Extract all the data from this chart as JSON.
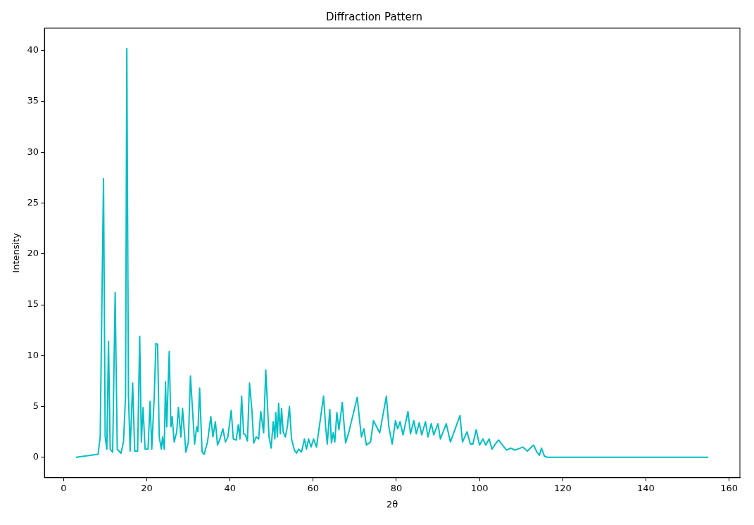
{
  "chart_data": {
    "type": "line",
    "title": "Diffraction Pattern",
    "xlabel": "2θ",
    "ylabel": "Intensity",
    "x": [
      3,
      8.3,
      8.8,
      9.6,
      10.0,
      10.4,
      10.8,
      11.2,
      11.8,
      12.4,
      12.9,
      13.8,
      14.4,
      14.9,
      15.2,
      15.6,
      16.0,
      16.6,
      17.1,
      17.8,
      18.3,
      18.7,
      19.1,
      19.6,
      20.3,
      20.8,
      21.2,
      21.8,
      22.2,
      22.6,
      23.0,
      23.5,
      23.8,
      24.2,
      24.5,
      24.8,
      25.4,
      25.8,
      26.1,
      26.6,
      27.2,
      27.6,
      28.2,
      28.6,
      29.4,
      30.0,
      30.5,
      31.1,
      31.5,
      32.0,
      32.3,
      32.7,
      33.3,
      33.8,
      34.6,
      35.4,
      35.9,
      36.5,
      37.0,
      37.6,
      38.3,
      38.9,
      39.5,
      40.3,
      40.8,
      41.5,
      42.0,
      42.4,
      42.8,
      43.3,
      43.7,
      44.2,
      44.7,
      45.3,
      45.7,
      46.3,
      46.9,
      47.4,
      48.1,
      48.6,
      49.4,
      49.9,
      50.4,
      50.8,
      51.0,
      51.4,
      51.7,
      52.1,
      52.4,
      52.8,
      53.3,
      53.8,
      54.3,
      54.8,
      55.5,
      56.0,
      56.5,
      57.2,
      57.9,
      58.4,
      58.9,
      59.5,
      60.1,
      60.8,
      62.5,
      63.0,
      63.4,
      64.0,
      64.4,
      64.8,
      65.2,
      65.7,
      66.2,
      67.0,
      67.8,
      68.6,
      70.6,
      71.2,
      71.6,
      72.2,
      72.8,
      73.8,
      74.5,
      76.0,
      77.6,
      78.2,
      79.0,
      79.8,
      80.3,
      80.9,
      81.6,
      82.8,
      83.4,
      84.2,
      84.8,
      85.5,
      86.1,
      87.0,
      87.6,
      88.4,
      89.0,
      90.0,
      90.6,
      92.0,
      93.0,
      95.3,
      95.9,
      97.0,
      97.8,
      98.4,
      99.2,
      100.0,
      100.8,
      101.5,
      102.3,
      103.0,
      103.8,
      104.6,
      105.5,
      106.5,
      107.5,
      108.5,
      110.4,
      111.5,
      112.2,
      113.0,
      113.8,
      114.4,
      114.9,
      115.6,
      116.3,
      130,
      155
    ],
    "values": [
      0,
      0.3,
      2,
      27.4,
      2,
      0.8,
      11.4,
      0.8,
      0.5,
      16.2,
      0.8,
      0.4,
      1.5,
      6,
      40.2,
      6,
      0.6,
      7.3,
      0.6,
      0.6,
      11.9,
      1.5,
      4.9,
      0.8,
      0.8,
      5.5,
      0.8,
      6,
      11.2,
      11.1,
      2,
      0.8,
      2,
      0.8,
      7.4,
      3,
      10.4,
      3,
      4,
      1.5,
      2.5,
      4.9,
      2,
      4.8,
      0.5,
      1.5,
      8,
      4,
      1.3,
      3,
      2.5,
      6.8,
      0.5,
      0.3,
      1.5,
      4,
      2,
      3.5,
      1.2,
      1.8,
      2.8,
      1.5,
      2,
      4.6,
      1.8,
      1.7,
      3.2,
      1.8,
      6,
      2.3,
      2.2,
      1.6,
      7.3,
      4.5,
      1.4,
      2,
      1.8,
      4.5,
      2.4,
      8.6,
      2,
      0.9,
      3.5,
      1.8,
      4.4,
      2,
      5.3,
      2.3,
      4.8,
      2.5,
      2,
      3,
      5,
      1.8,
      0.7,
      0.4,
      0.8,
      0.5,
      1.8,
      0.8,
      1.8,
      1,
      1.8,
      1,
      6,
      3,
      1.3,
      4.7,
      1.4,
      2.4,
      1.5,
      4.4,
      2.7,
      5.4,
      1.4,
      2.5,
      5.9,
      3.5,
      2,
      2.8,
      1.2,
      1.5,
      3.6,
      2.4,
      6,
      3,
      1.3,
      3.6,
      2.8,
      3.5,
      2.2,
      4.5,
      2.3,
      3.6,
      2.3,
      3.4,
      2.2,
      3.5,
      2,
      3.3,
      2.2,
      3.3,
      1.8,
      3.3,
      1.5,
      4.1,
      1.5,
      2.5,
      1.3,
      1.3,
      2.7,
      1.2,
      1.8,
      1.2,
      1.8,
      0.8,
      1.3,
      1.7,
      1.2,
      0.7,
      0.9,
      0.7,
      1,
      0.6,
      0.9,
      1.2,
      0.5,
      0.2,
      0.9,
      0.1,
      0,
      0,
      0
    ],
    "color": "#00bfc4",
    "xlim": [
      -4.6,
      162.6
    ],
    "ylim": [
      -2.01,
      42.2
    ],
    "xticks": [
      0,
      20,
      40,
      60,
      80,
      100,
      120,
      140,
      160
    ],
    "yticks": [
      0,
      5,
      10,
      15,
      20,
      25,
      30,
      35,
      40
    ]
  }
}
